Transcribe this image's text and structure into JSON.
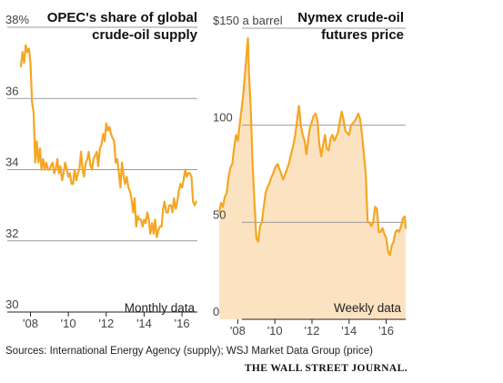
{
  "colors": {
    "line": "#f5a623",
    "fill": "#fbe3c2",
    "grid": "#9a9a9a",
    "text": "#111111"
  },
  "footer": {
    "sources": "Sources: International Energy Agency (supply); WSJ Market Data Group (price)",
    "brand": "THE WALL STREET JOURNAL."
  },
  "chart_data": [
    {
      "type": "line",
      "title": "OPEC's share of global crude-oil supply",
      "title_lines": [
        "OPEC's share of global",
        "crude-oil supply"
      ],
      "note": "Monthly data",
      "ylim": [
        30,
        38
      ],
      "yticks": [
        30,
        32,
        34,
        36,
        38
      ],
      "ytick_labels": [
        "30",
        "32",
        "34",
        "36",
        "38%"
      ],
      "xlim": [
        2007.4,
        2017.1
      ],
      "xticks": [
        2008,
        2010,
        2012,
        2014,
        2016
      ],
      "xtick_labels": [
        "'08",
        "'10",
        "'12",
        "'14",
        "'16"
      ],
      "grid": true,
      "series": [
        {
          "x": [
            2007.5,
            2007.58,
            2007.67,
            2007.75,
            2007.83,
            2007.92,
            2008.0,
            2008.08,
            2008.17,
            2008.25,
            2008.33,
            2008.42,
            2008.5,
            2008.58,
            2008.67,
            2008.75,
            2008.83,
            2008.92,
            2009.0,
            2009.08,
            2009.17,
            2009.25,
            2009.33,
            2009.42,
            2009.5,
            2009.58,
            2009.67,
            2009.75,
            2009.83,
            2009.92,
            2010.0,
            2010.08,
            2010.17,
            2010.25,
            2010.33,
            2010.42,
            2010.5,
            2010.58,
            2010.67,
            2010.75,
            2010.83,
            2010.92,
            2011.0,
            2011.08,
            2011.17,
            2011.25,
            2011.33,
            2011.42,
            2011.5,
            2011.58,
            2011.67,
            2011.75,
            2011.83,
            2011.92,
            2012.0,
            2012.08,
            2012.17,
            2012.25,
            2012.33,
            2012.42,
            2012.5,
            2012.58,
            2012.67,
            2012.75,
            2012.83,
            2012.92,
            2013.0,
            2013.08,
            2013.17,
            2013.25,
            2013.33,
            2013.42,
            2013.5,
            2013.58,
            2013.67,
            2013.75,
            2013.83,
            2013.92,
            2014.0,
            2014.08,
            2014.17,
            2014.25,
            2014.33,
            2014.42,
            2014.5,
            2014.58,
            2014.67,
            2014.75,
            2014.83,
            2014.92,
            2015.0,
            2015.08,
            2015.17,
            2015.25,
            2015.33,
            2015.42,
            2015.5,
            2015.58,
            2015.67,
            2015.75,
            2015.83,
            2015.92,
            2016.0,
            2016.08,
            2016.17,
            2016.25,
            2016.33,
            2016.42,
            2016.5,
            2016.58,
            2016.67,
            2016.75
          ],
          "values": [
            36.9,
            37.3,
            37.0,
            37.5,
            37.3,
            37.4,
            37.0,
            35.9,
            35.6,
            34.2,
            34.8,
            34.2,
            34.6,
            34.0,
            34.3,
            34.0,
            34.2,
            34.0,
            34.0,
            34.1,
            34.2,
            33.9,
            34.0,
            34.3,
            33.9,
            34.1,
            33.7,
            33.9,
            34.2,
            34.0,
            33.8,
            33.9,
            33.6,
            33.6,
            34.0,
            33.7,
            33.9,
            34.0,
            34.5,
            34.0,
            33.8,
            34.2,
            34.3,
            34.5,
            34.1,
            34.0,
            34.3,
            34.4,
            34.5,
            34.1,
            34.6,
            34.7,
            35.0,
            34.8,
            35.3,
            35.1,
            35.2,
            35.0,
            34.9,
            34.8,
            34.2,
            34.3,
            33.9,
            33.5,
            34.2,
            33.8,
            33.6,
            33.8,
            33.5,
            33.4,
            33.2,
            32.8,
            33.2,
            32.4,
            32.7,
            32.6,
            32.6,
            32.4,
            32.6,
            32.5,
            32.8,
            32.6,
            32.2,
            32.5,
            32.2,
            32.6,
            32.1,
            32.3,
            32.4,
            32.4,
            32.9,
            33.1,
            32.8,
            32.8,
            33.0,
            33.0,
            32.8,
            33.2,
            32.9,
            33.1,
            33.4,
            33.6,
            33.5,
            33.7,
            34.0,
            33.8,
            33.9,
            33.9,
            33.8,
            33.1,
            33.0,
            33.1
          ]
        }
      ]
    },
    {
      "type": "area",
      "title": "Nymex crude-oil futures price",
      "title_lines": [
        "Nymex crude-oil",
        "futures price"
      ],
      "note": "Weekly data",
      "ylim": [
        0,
        150
      ],
      "yticks": [
        0,
        50,
        100,
        150
      ],
      "ytick_labels": [
        "0",
        "50",
        "100",
        "$150 a barrel"
      ],
      "xlim": [
        2007.0,
        2017.1
      ],
      "xticks": [
        2008,
        2010,
        2012,
        2014,
        2016
      ],
      "xtick_labels": [
        "'08",
        "'10",
        "'12",
        "'14",
        "'16"
      ],
      "grid": true,
      "series": [
        {
          "x": [
            2007.0,
            2007.1,
            2007.2,
            2007.3,
            2007.4,
            2007.5,
            2007.6,
            2007.7,
            2007.8,
            2007.9,
            2008.0,
            2008.1,
            2008.2,
            2008.3,
            2008.4,
            2008.5,
            2008.55,
            2008.6,
            2008.7,
            2008.8,
            2008.9,
            2009.0,
            2009.1,
            2009.2,
            2009.3,
            2009.4,
            2009.5,
            2009.6,
            2009.7,
            2009.8,
            2009.9,
            2010.0,
            2010.15,
            2010.3,
            2010.45,
            2010.6,
            2010.75,
            2010.9,
            2011.0,
            2011.1,
            2011.2,
            2011.3,
            2011.4,
            2011.5,
            2011.6,
            2011.7,
            2011.8,
            2011.9,
            2012.0,
            2012.1,
            2012.2,
            2012.3,
            2012.4,
            2012.5,
            2012.6,
            2012.7,
            2012.8,
            2012.9,
            2013.0,
            2013.1,
            2013.2,
            2013.3,
            2013.4,
            2013.5,
            2013.6,
            2013.7,
            2013.8,
            2013.9,
            2014.0,
            2014.1,
            2014.2,
            2014.3,
            2014.4,
            2014.5,
            2014.6,
            2014.7,
            2014.8,
            2014.9,
            2015.0,
            2015.1,
            2015.2,
            2015.3,
            2015.4,
            2015.5,
            2015.6,
            2015.7,
            2015.8,
            2015.9,
            2016.0,
            2016.1,
            2016.2,
            2016.3,
            2016.4,
            2016.5,
            2016.6,
            2016.7,
            2016.8,
            2016.9,
            2017.0,
            2017.05
          ],
          "values": [
            55,
            60,
            58,
            63,
            65,
            73,
            78,
            80,
            88,
            95,
            92,
            100,
            108,
            116,
            128,
            140,
            145,
            128,
            108,
            80,
            60,
            42,
            40,
            48,
            50,
            58,
            65,
            68,
            70,
            73,
            75,
            78,
            80,
            76,
            72,
            76,
            80,
            86,
            90,
            95,
            103,
            110,
            100,
            95,
            92,
            85,
            93,
            99,
            102,
            105,
            106,
            102,
            90,
            84,
            90,
            95,
            88,
            87,
            93,
            95,
            92,
            94,
            96,
            102,
            107,
            103,
            97,
            96,
            95,
            100,
            101,
            102,
            104,
            106,
            103,
            95,
            85,
            75,
            50,
            50,
            48,
            50,
            58,
            57,
            45,
            45,
            47,
            44,
            42,
            35,
            33,
            38,
            40,
            45,
            46,
            45,
            48,
            52,
            53,
            47
          ]
        }
      ]
    }
  ]
}
